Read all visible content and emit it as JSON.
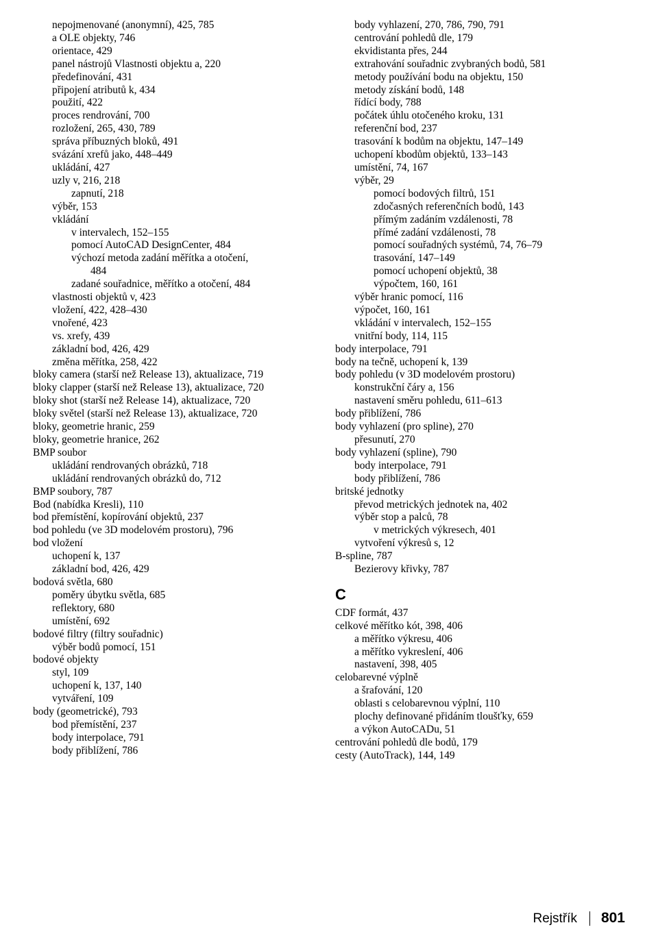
{
  "colors": {
    "bg": "#ffffff",
    "text": "#000000"
  },
  "font": {
    "body_family": "Times New Roman",
    "body_size_pt": 12,
    "head_family": "Arial",
    "head_size_pt": 17
  },
  "left": [
    {
      "indent": 1,
      "t": "nepojmenované (anonymní),  425, 785"
    },
    {
      "indent": 1,
      "t": "a OLE objekty,  746"
    },
    {
      "indent": 1,
      "t": "orientace,  429"
    },
    {
      "indent": 1,
      "t": "panel nástrojů Vlastnosti objektu a,  220"
    },
    {
      "indent": 1,
      "t": "předefinování,  431"
    },
    {
      "indent": 1,
      "t": "připojení atributů k,  434"
    },
    {
      "indent": 1,
      "t": "použití,  422"
    },
    {
      "indent": 1,
      "t": "proces rendrování,  700"
    },
    {
      "indent": 1,
      "t": "rozložení,  265, 430, 789"
    },
    {
      "indent": 1,
      "t": "správa příbuzných bloků,  491"
    },
    {
      "indent": 1,
      "t": "svázání xrefů jako,  448–449"
    },
    {
      "indent": 1,
      "t": "ukládání,  427"
    },
    {
      "indent": 1,
      "t": "uzly v,  216, 218"
    },
    {
      "indent": 2,
      "t": "zapnutí,  218"
    },
    {
      "indent": 1,
      "t": "výběr,  153"
    },
    {
      "indent": 1,
      "t": "vkládání"
    },
    {
      "indent": 2,
      "t": "v intervalech,  152–155"
    },
    {
      "indent": 2,
      "t": "pomocí AutoCAD DesignCenter,  484"
    },
    {
      "indent": 2,
      "t": "výchozí metoda zadání měřítka a otočení,"
    },
    {
      "indent": 3,
      "t": "484"
    },
    {
      "indent": 2,
      "t": "zadané souřadnice, měřítko a otočení,  484"
    },
    {
      "indent": 1,
      "t": "vlastnosti objektů v,  423"
    },
    {
      "indent": 1,
      "t": "vložení,  422, 428–430"
    },
    {
      "indent": 1,
      "t": "vnořené,  423"
    },
    {
      "indent": 1,
      "t": "vs. xrefy,  439"
    },
    {
      "indent": 1,
      "t": "základní bod,  426, 429"
    },
    {
      "indent": 1,
      "t": "změna měřítka,  258, 422"
    },
    {
      "indent": 0,
      "t": "bloky camera (starší než Release 13), aktualizace,  719"
    },
    {
      "indent": 0,
      "t": "bloky clapper (starší než Release 13), aktualizace,  720"
    },
    {
      "indent": 0,
      "t": "bloky shot (starší než Release 14), aktualizace,  720"
    },
    {
      "indent": 0,
      "t": "bloky světel (starší než Release 13), aktualizace,  720"
    },
    {
      "indent": 0,
      "t": "bloky, geometrie hranic,  259"
    },
    {
      "indent": 0,
      "t": "bloky, geometrie hranice,  262"
    },
    {
      "indent": 0,
      "t": "BMP soubor"
    },
    {
      "indent": 1,
      "t": "ukládání rendrovaných obrázků,  718"
    },
    {
      "indent": 1,
      "t": "ukládání rendrovaných obrázků do,  712"
    },
    {
      "indent": 0,
      "t": "BMP soubory,  787"
    },
    {
      "indent": 0,
      "t": "Bod (nabídka Kresli),  110"
    },
    {
      "indent": 0,
      "t": "bod přemístění, kopírování objektů,  237"
    },
    {
      "indent": 0,
      "t": "bod pohledu (ve 3D modelovém prostoru),  796"
    },
    {
      "indent": 0,
      "t": "bod vložení"
    },
    {
      "indent": 1,
      "t": "uchopení k,  137"
    },
    {
      "indent": 1,
      "t": "základní bod,  426, 429"
    },
    {
      "indent": 0,
      "t": "bodová světla,  680"
    },
    {
      "indent": 1,
      "t": "poměry úbytku světla,  685"
    },
    {
      "indent": 1,
      "t": "reflektory,  680"
    },
    {
      "indent": 1,
      "t": "umístění,  692"
    },
    {
      "indent": 0,
      "t": "bodové filtry (filtry souřadnic)"
    },
    {
      "indent": 1,
      "t": "výběr bodů pomocí,  151"
    },
    {
      "indent": 0,
      "t": "bodové objekty"
    },
    {
      "indent": 1,
      "t": "styl,  109"
    },
    {
      "indent": 1,
      "t": "uchopení k,  137, 140"
    },
    {
      "indent": 1,
      "t": "vytváření,  109"
    },
    {
      "indent": 0,
      "t": "body (geometrické),  793"
    },
    {
      "indent": 1,
      "t": "bod přemístění,  237"
    },
    {
      "indent": 1,
      "t": "body interpolace,  791"
    },
    {
      "indent": 1,
      "t": "body přiblížení,  786"
    }
  ],
  "right": [
    {
      "indent": 1,
      "t": "body vyhlazení,  270, 786, 790, 791"
    },
    {
      "indent": 1,
      "t": "centrování pohledů dle,  179"
    },
    {
      "indent": 1,
      "t": "ekvidistanta přes,  244"
    },
    {
      "indent": 1,
      "t": "extrahování souřadnic zvybraných bodů,  581"
    },
    {
      "indent": 1,
      "t": "metody používání bodu na objektu,  150"
    },
    {
      "indent": 1,
      "t": "metody získání bodů,  148"
    },
    {
      "indent": 1,
      "t": "řídící body,  788"
    },
    {
      "indent": 1,
      "t": "počátek úhlu otočeného kroku,  131"
    },
    {
      "indent": 1,
      "t": "referenční bod,  237"
    },
    {
      "indent": 1,
      "t": "trasování k bodům na objektu,  147–149"
    },
    {
      "indent": 1,
      "t": "uchopení kbodům objektů,  133–143"
    },
    {
      "indent": 1,
      "t": "umístění,  74, 167"
    },
    {
      "indent": 1,
      "t": "výběr,  29"
    },
    {
      "indent": 2,
      "t": "pomocí bodových filtrů,  151"
    },
    {
      "indent": 2,
      "t": "zdočasných referenčních bodů,  143"
    },
    {
      "indent": 2,
      "t": "přímým zadáním vzdálenosti,  78"
    },
    {
      "indent": 2,
      "t": "přímé zadání vzdálenosti,  78"
    },
    {
      "indent": 2,
      "t": "pomocí souřadných systémů,  74, 76–79"
    },
    {
      "indent": 2,
      "t": "trasování,  147–149"
    },
    {
      "indent": 2,
      "t": "pomocí uchopení objektů,  38"
    },
    {
      "indent": 2,
      "t": "výpočtem,  160, 161"
    },
    {
      "indent": 1,
      "t": "výběr hranic pomocí,  116"
    },
    {
      "indent": 1,
      "t": "výpočet,  160, 161"
    },
    {
      "indent": 1,
      "t": "vkládání v intervalech,  152–155"
    },
    {
      "indent": 1,
      "t": "vnitřní body,  114, 115"
    },
    {
      "indent": 0,
      "t": "body interpolace,  791"
    },
    {
      "indent": 0,
      "t": "body na tečně, uchopení k,  139"
    },
    {
      "indent": 0,
      "t": "body pohledu (v 3D modelovém prostoru)"
    },
    {
      "indent": 1,
      "t": "konstrukční čáry a,  156"
    },
    {
      "indent": 1,
      "t": "nastavení směru pohledu,  611–613"
    },
    {
      "indent": 0,
      "t": "body přiblížení,  786"
    },
    {
      "indent": 0,
      "t": "body vyhlazení (pro spline),  270"
    },
    {
      "indent": 1,
      "t": "přesunutí,  270"
    },
    {
      "indent": 0,
      "t": "body vyhlazení (spline),  790"
    },
    {
      "indent": 1,
      "t": "body interpolace,  791"
    },
    {
      "indent": 1,
      "t": "body přiblížení,  786"
    },
    {
      "indent": 0,
      "t": "britské jednotky"
    },
    {
      "indent": 1,
      "t": "převod metrických jednotek na,  402"
    },
    {
      "indent": 1,
      "t": "výběr stop a palců,  78"
    },
    {
      "indent": 2,
      "t": "v metrických výkresech,  401"
    },
    {
      "indent": 1,
      "t": "vytvoření výkresů s,  12"
    },
    {
      "indent": 0,
      "t": "B-spline,  787"
    },
    {
      "indent": 1,
      "t": "Bezierovy křivky,  787"
    },
    {
      "head": true,
      "t": "C"
    },
    {
      "indent": 0,
      "t": "CDF formát,  437"
    },
    {
      "indent": 0,
      "t": "celkové měřítko kót,  398, 406"
    },
    {
      "indent": 1,
      "t": "a měřítko výkresu,  406"
    },
    {
      "indent": 1,
      "t": "a měřítko vykreslení,  406"
    },
    {
      "indent": 1,
      "t": "nastavení,  398, 405"
    },
    {
      "indent": 0,
      "t": "celobarevné výplně"
    },
    {
      "indent": 1,
      "t": "a šrafování,  120"
    },
    {
      "indent": 1,
      "t": "oblasti s celobarevnou výplní,  110"
    },
    {
      "indent": 1,
      "t": "plochy definované přidáním tloušťky,  659"
    },
    {
      "indent": 1,
      "t": "a výkon AutoCADu,  51"
    },
    {
      "indent": 0,
      "t": "centrování pohledů dle bodů,  179"
    },
    {
      "indent": 0,
      "t": "cesty (AutoTrack),  144, 149"
    }
  ],
  "footer": {
    "label": "Rejstřík",
    "page": "801"
  }
}
